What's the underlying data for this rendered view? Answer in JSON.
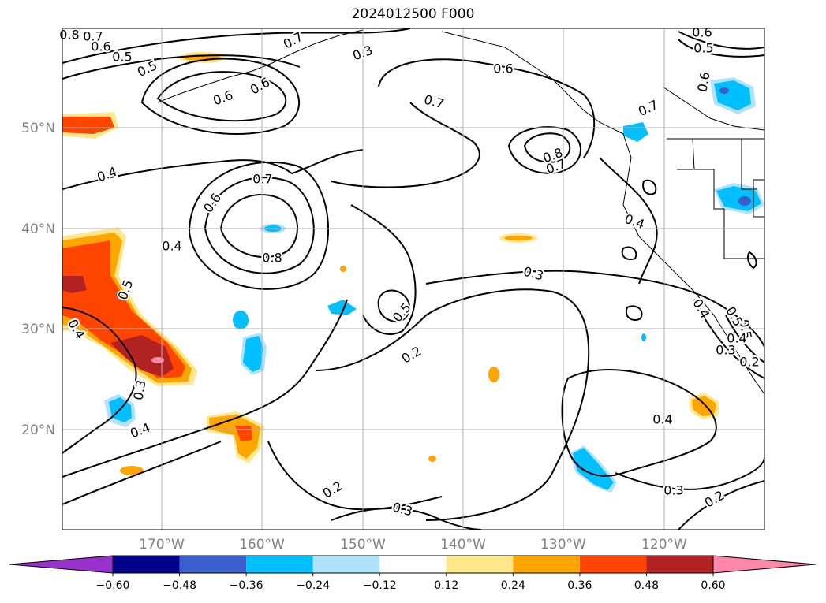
{
  "title": "2024012500 F000",
  "map": {
    "lat_labels": [
      "50°N",
      "40°N",
      "30°N",
      "20°N"
    ],
    "lon_labels": [
      "170°W",
      "160°W",
      "150°W",
      "140°W",
      "130°W",
      "120°W"
    ],
    "contour_labels": [
      "0.8",
      "0.7",
      "0.6",
      "0.5",
      "0.5",
      "0.4",
      "0.3",
      "0.7",
      "0.6",
      "0.6",
      "0.7",
      "0.6",
      "0.7",
      "0.6",
      "0.5",
      "0.6",
      "0.7",
      "0.8",
      "0.7",
      "0.8",
      "0.6",
      "0.4",
      "0.4",
      "0.3",
      "0.5",
      "0.2",
      "0.5",
      "0.4",
      "0.3",
      "0.4",
      "0.3",
      "0.2",
      "0.3",
      "0.2",
      "0.4",
      "0.5",
      "0.4",
      "0.5",
      "0.4",
      "0.3",
      "0.2"
    ]
  },
  "colorbar": {
    "ticks": [
      "−0.60",
      "−0.48",
      "−0.36",
      "−0.24",
      "−0.12",
      "0.12",
      "0.24",
      "0.36",
      "0.48",
      "0.60"
    ],
    "colors": [
      "#9932cc",
      "#00008b",
      "#3a5fcd",
      "#00bfff",
      "#b0e2ff",
      "#ffffff",
      "#ffe78a",
      "#ffa500",
      "#ff4500",
      "#b22222",
      "#ff88aa"
    ]
  }
}
